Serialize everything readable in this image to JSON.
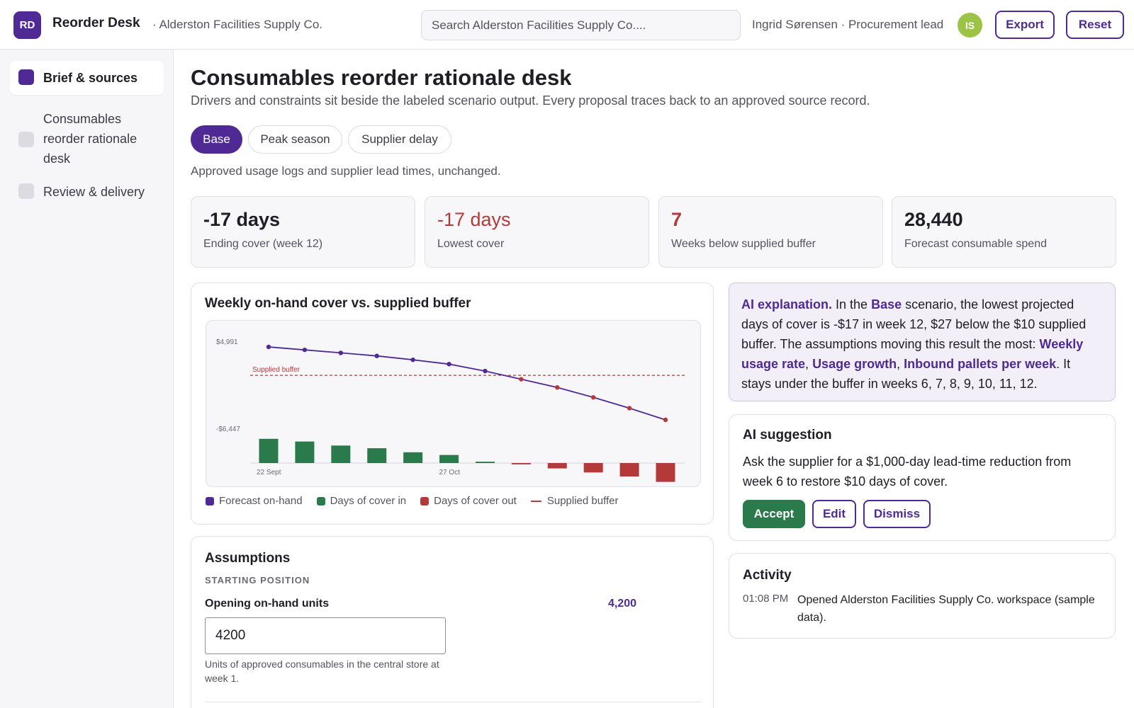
{
  "header": {
    "logo_initials": "RD",
    "app_name": "Reorder Desk",
    "org_name": "· Alderston Facilities Supply Co.",
    "search_placeholder": "Search Alderston Facilities Supply Co....",
    "user": "Ingrid Sørensen · Procurement lead",
    "avatar_initials": "IS",
    "avatar_color": "#9bc346",
    "export_label": "Export",
    "reset_label": "Reset"
  },
  "sidebar": {
    "items": [
      {
        "label": "Brief & sources",
        "active": true
      },
      {
        "label": "Consumables reorder rationale desk",
        "active": false
      },
      {
        "label": "Review & delivery",
        "active": false
      }
    ]
  },
  "page": {
    "title": "Consumables reorder rationale desk",
    "subtitle": "Drivers and constraints sit beside the labeled scenario output. Every proposal traces back to an approved source record."
  },
  "scenarios": {
    "tabs": [
      "Base",
      "Peak season",
      "Supplier delay"
    ],
    "active": "Base",
    "description": "Approved usage logs and supplier lead times, unchanged."
  },
  "kpis": [
    {
      "value": "-17 days",
      "label": "Ending cover (week 12)"
    },
    {
      "value": "-17 days",
      "label": "Lowest cover"
    },
    {
      "value": "7",
      "label": "Weeks below supplied buffer"
    },
    {
      "value": "28,440",
      "label": "Forecast consumable spend"
    }
  ],
  "chart_card": {
    "title": "Weekly on-hand cover vs. supplied buffer"
  },
  "chart_data": {
    "type": "line",
    "title": "Weekly on-hand cover vs. supplied buffer",
    "y_tick_labels": [
      "$4,991",
      "-$6,447"
    ],
    "x_tick_labels": [
      "22 Sept",
      "27 Oct"
    ],
    "buffer_label": "Supplied buffer",
    "series": [
      {
        "name": "Forecast on-hand",
        "values": [
          4991,
          4650,
          4300,
          3950,
          3500,
          3000,
          2200,
          1250,
          300,
          -850,
          -2100,
          -3450
        ]
      },
      {
        "name": "Days of cover in",
        "values": [
          18,
          16,
          13,
          11,
          8,
          6,
          1,
          0,
          0,
          0,
          0,
          0
        ]
      },
      {
        "name": "Days of cover out",
        "values": [
          0,
          0,
          0,
          0,
          0,
          0,
          0,
          -1,
          -4,
          -7,
          -10,
          -14
        ]
      }
    ],
    "buffer_value": 1700,
    "colors": {
      "line": "#4f2a95",
      "below_point": "#b43a3a",
      "bar_in": "#2b7a4b",
      "bar_out": "#b43a3a",
      "buffer": "#b43a3a"
    }
  },
  "legend": [
    {
      "label": "Forecast on-hand",
      "color": "#4f2a95",
      "kind": "swatch"
    },
    {
      "label": "Days of cover in",
      "color": "#2b7a4b",
      "kind": "swatch"
    },
    {
      "label": "Days of cover out",
      "color": "#b43a3a",
      "kind": "swatch"
    },
    {
      "label": "Supplied buffer",
      "color": "#b43a3a",
      "kind": "line"
    }
  ],
  "assumptions": {
    "title": "Assumptions",
    "section": "STARTING POSITION",
    "field_label": "Opening on-hand units",
    "field_display": "4,200",
    "field_value": "4200",
    "field_help": "Units of approved consumables in the central store at week 1."
  },
  "ai_explanation": {
    "label": "AI explanation.",
    "t1": " In the ",
    "scenario": "Base",
    "t2": " scenario, the lowest projected days of cover is -$17 in week 12, $27 below the $10 supplied buffer. The assumptions moving this result the most: ",
    "driver1": "Weekly usage rate",
    "sep1": ", ",
    "driver2": "Usage growth",
    "sep2": ", ",
    "driver3": "Inbound pallets per week",
    "t3": ". It stays under the buffer in weeks 6, 7, 8, 9, 10, 11, 12."
  },
  "ai_suggestion": {
    "title": "AI suggestion",
    "text": "Ask the supplier for a $1,000-day lead-time reduction from week 6 to restore $10 days of cover.",
    "accept_label": "Accept",
    "edit_label": "Edit",
    "dismiss_label": "Dismiss"
  },
  "activity": {
    "title": "Activity",
    "entries": [
      {
        "time": "01:08 PM",
        "text": "Opened Alderston Facilities Supply Co. workspace (sample data)."
      }
    ]
  }
}
